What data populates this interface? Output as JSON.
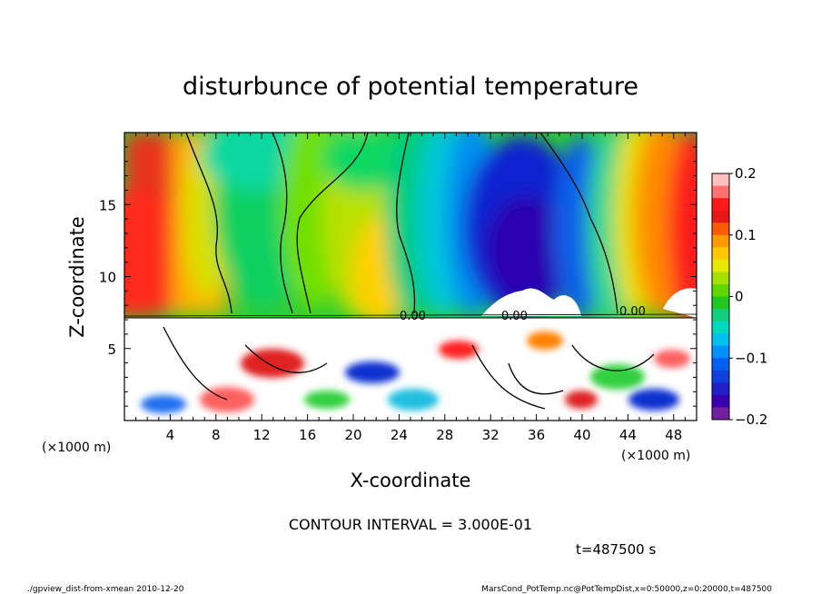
{
  "chart_data": {
    "type": "heatmap",
    "title": "disturbunce of potential temperature",
    "xlabel": "X-coordinate",
    "ylabel": "Z-coordinate",
    "x_unit": "(×1000 m)",
    "y_unit": "(×1000 m)",
    "xlim": [
      0,
      50
    ],
    "ylim": [
      0,
      20
    ],
    "x_ticks": [
      4,
      8,
      12,
      16,
      20,
      24,
      28,
      32,
      36,
      40,
      44,
      48
    ],
    "y_ticks": [
      5,
      10,
      15
    ],
    "colorbar": {
      "range": [
        -0.2,
        0.2
      ],
      "ticks": [
        {
          "value": 0.2,
          "label": "0.2"
        },
        {
          "value": 0.1,
          "label": "0.1"
        },
        {
          "value": 0,
          "label": "0"
        },
        {
          "value": -0.1,
          "label": "−0.1"
        },
        {
          "value": -0.2,
          "label": "−0.2"
        }
      ]
    },
    "contour_labels": [
      "0.00",
      "0.00",
      "0.00"
    ],
    "contour_interval_text": "CONTOUR INTERVAL = 3.000E-01",
    "time_text": "t=487500 s"
  },
  "footer": {
    "left": "./gpview_dist-from-xmean  2010-12-20",
    "right": "MarsCond_PotTemp.nc@PotTempDist,x=0:50000,z=0:20000,t=487500"
  }
}
